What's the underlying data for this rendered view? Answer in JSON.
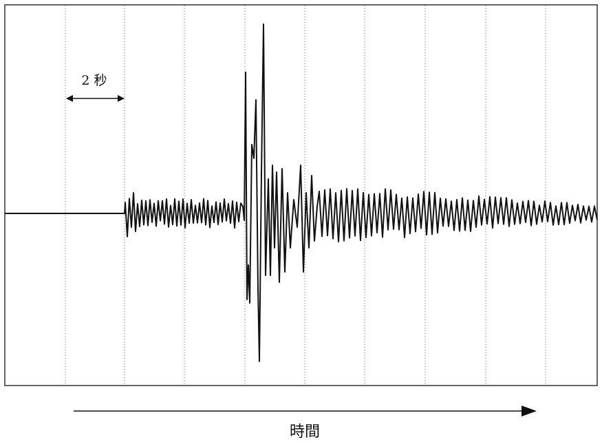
{
  "scale_label": "2 秒",
  "axis_label": "時間",
  "colors": {
    "ink": "#111111",
    "grid": "#666666",
    "background": "#ffffff"
  }
}
